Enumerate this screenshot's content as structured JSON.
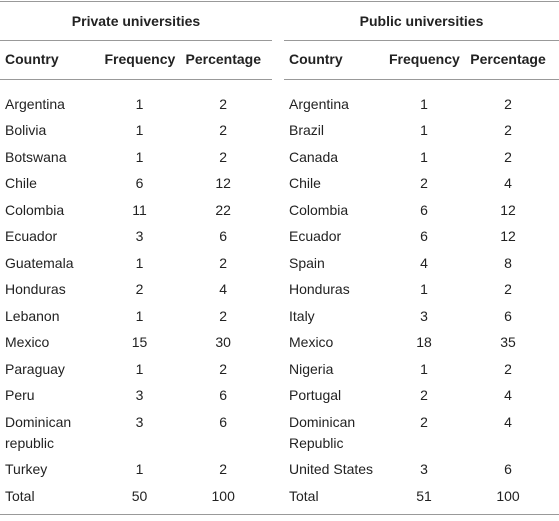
{
  "table": {
    "groups": [
      {
        "title": "Private universities",
        "columns": [
          "Country",
          "Frequency",
          "Percentage"
        ],
        "rows": [
          [
            "Argentina",
            1,
            2
          ],
          [
            "Bolivia",
            1,
            2
          ],
          [
            "Botswana",
            1,
            2
          ],
          [
            "Chile",
            6,
            12
          ],
          [
            "Colombia",
            11,
            22
          ],
          [
            "Ecuador",
            3,
            6
          ],
          [
            "Guatemala",
            1,
            2
          ],
          [
            "Honduras",
            2,
            4
          ],
          [
            "Lebanon",
            1,
            2
          ],
          [
            "Mexico",
            15,
            30
          ],
          [
            "Paraguay",
            1,
            2
          ],
          [
            "Peru",
            3,
            6
          ],
          [
            "Dominican republic",
            3,
            6
          ],
          [
            "Turkey",
            1,
            2
          ],
          [
            "Total",
            50,
            100
          ]
        ]
      },
      {
        "title": "Public universities",
        "columns": [
          "Country",
          "Frequency",
          "Percentage"
        ],
        "rows": [
          [
            "Argentina",
            1,
            2
          ],
          [
            "Brazil",
            1,
            2
          ],
          [
            "Canada",
            1,
            2
          ],
          [
            "Chile",
            2,
            4
          ],
          [
            "Colombia",
            6,
            12
          ],
          [
            "Ecuador",
            6,
            12
          ],
          [
            "Spain",
            4,
            8
          ],
          [
            "Honduras",
            1,
            2
          ],
          [
            "Italy",
            3,
            6
          ],
          [
            "Mexico",
            18,
            35
          ],
          [
            "Nigeria",
            1,
            2
          ],
          [
            "Portugal",
            2,
            4
          ],
          [
            "Dominican Republic",
            2,
            4
          ],
          [
            "United States",
            3,
            6
          ],
          [
            "Total",
            51,
            100
          ]
        ]
      }
    ]
  }
}
